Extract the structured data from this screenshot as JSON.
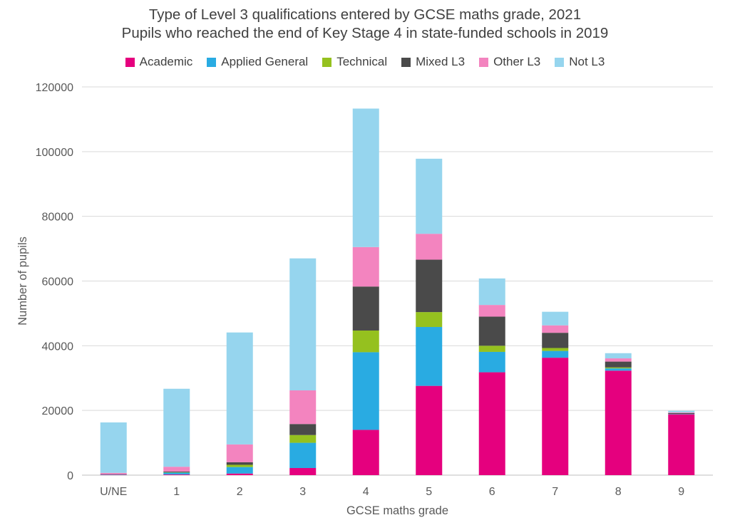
{
  "chart_data": {
    "type": "bar",
    "stacked": true,
    "title": "Type of Level 3 qualifications entered by GCSE maths grade, 2021",
    "subtitle": "Pupils who reached the end of Key Stage 4 in state-funded schools in 2019",
    "xlabel": "GCSE maths grade",
    "ylabel": "Number of pupils",
    "ylim": [
      0,
      120000
    ],
    "yticks": [
      "0",
      "20000",
      "40000",
      "60000",
      "80000",
      "100000",
      "120000"
    ],
    "grid": true,
    "legend_position": "top",
    "categories": [
      "U/NE",
      "1",
      "2",
      "3",
      "4",
      "5",
      "6",
      "7",
      "8",
      "9"
    ],
    "series": [
      {
        "name": "Academic",
        "color": "#e5007e",
        "values": [
          100,
          200,
          500,
          2200,
          14000,
          27600,
          31800,
          36300,
          32300,
          18800
        ]
      },
      {
        "name": "Applied General",
        "color": "#29abe2",
        "values": [
          100,
          600,
          2000,
          7800,
          24000,
          18200,
          6300,
          2100,
          700,
          100
        ]
      },
      {
        "name": "Technical",
        "color": "#95c11f",
        "values": [
          0,
          100,
          700,
          2400,
          6700,
          4600,
          1900,
          900,
          300,
          0
        ]
      },
      {
        "name": "Mixed L3",
        "color": "#4a4a4a",
        "values": [
          100,
          200,
          800,
          3400,
          13600,
          16200,
          9000,
          4700,
          1800,
          300
        ]
      },
      {
        "name": "Other L3",
        "color": "#f384bf",
        "values": [
          400,
          1500,
          5500,
          10400,
          12200,
          8000,
          3600,
          2300,
          1000,
          200
        ]
      },
      {
        "name": "Not L3",
        "color": "#96d5ee",
        "values": [
          15600,
          24100,
          34600,
          40800,
          42800,
          23200,
          8200,
          4200,
          1600,
          500
        ]
      }
    ]
  }
}
